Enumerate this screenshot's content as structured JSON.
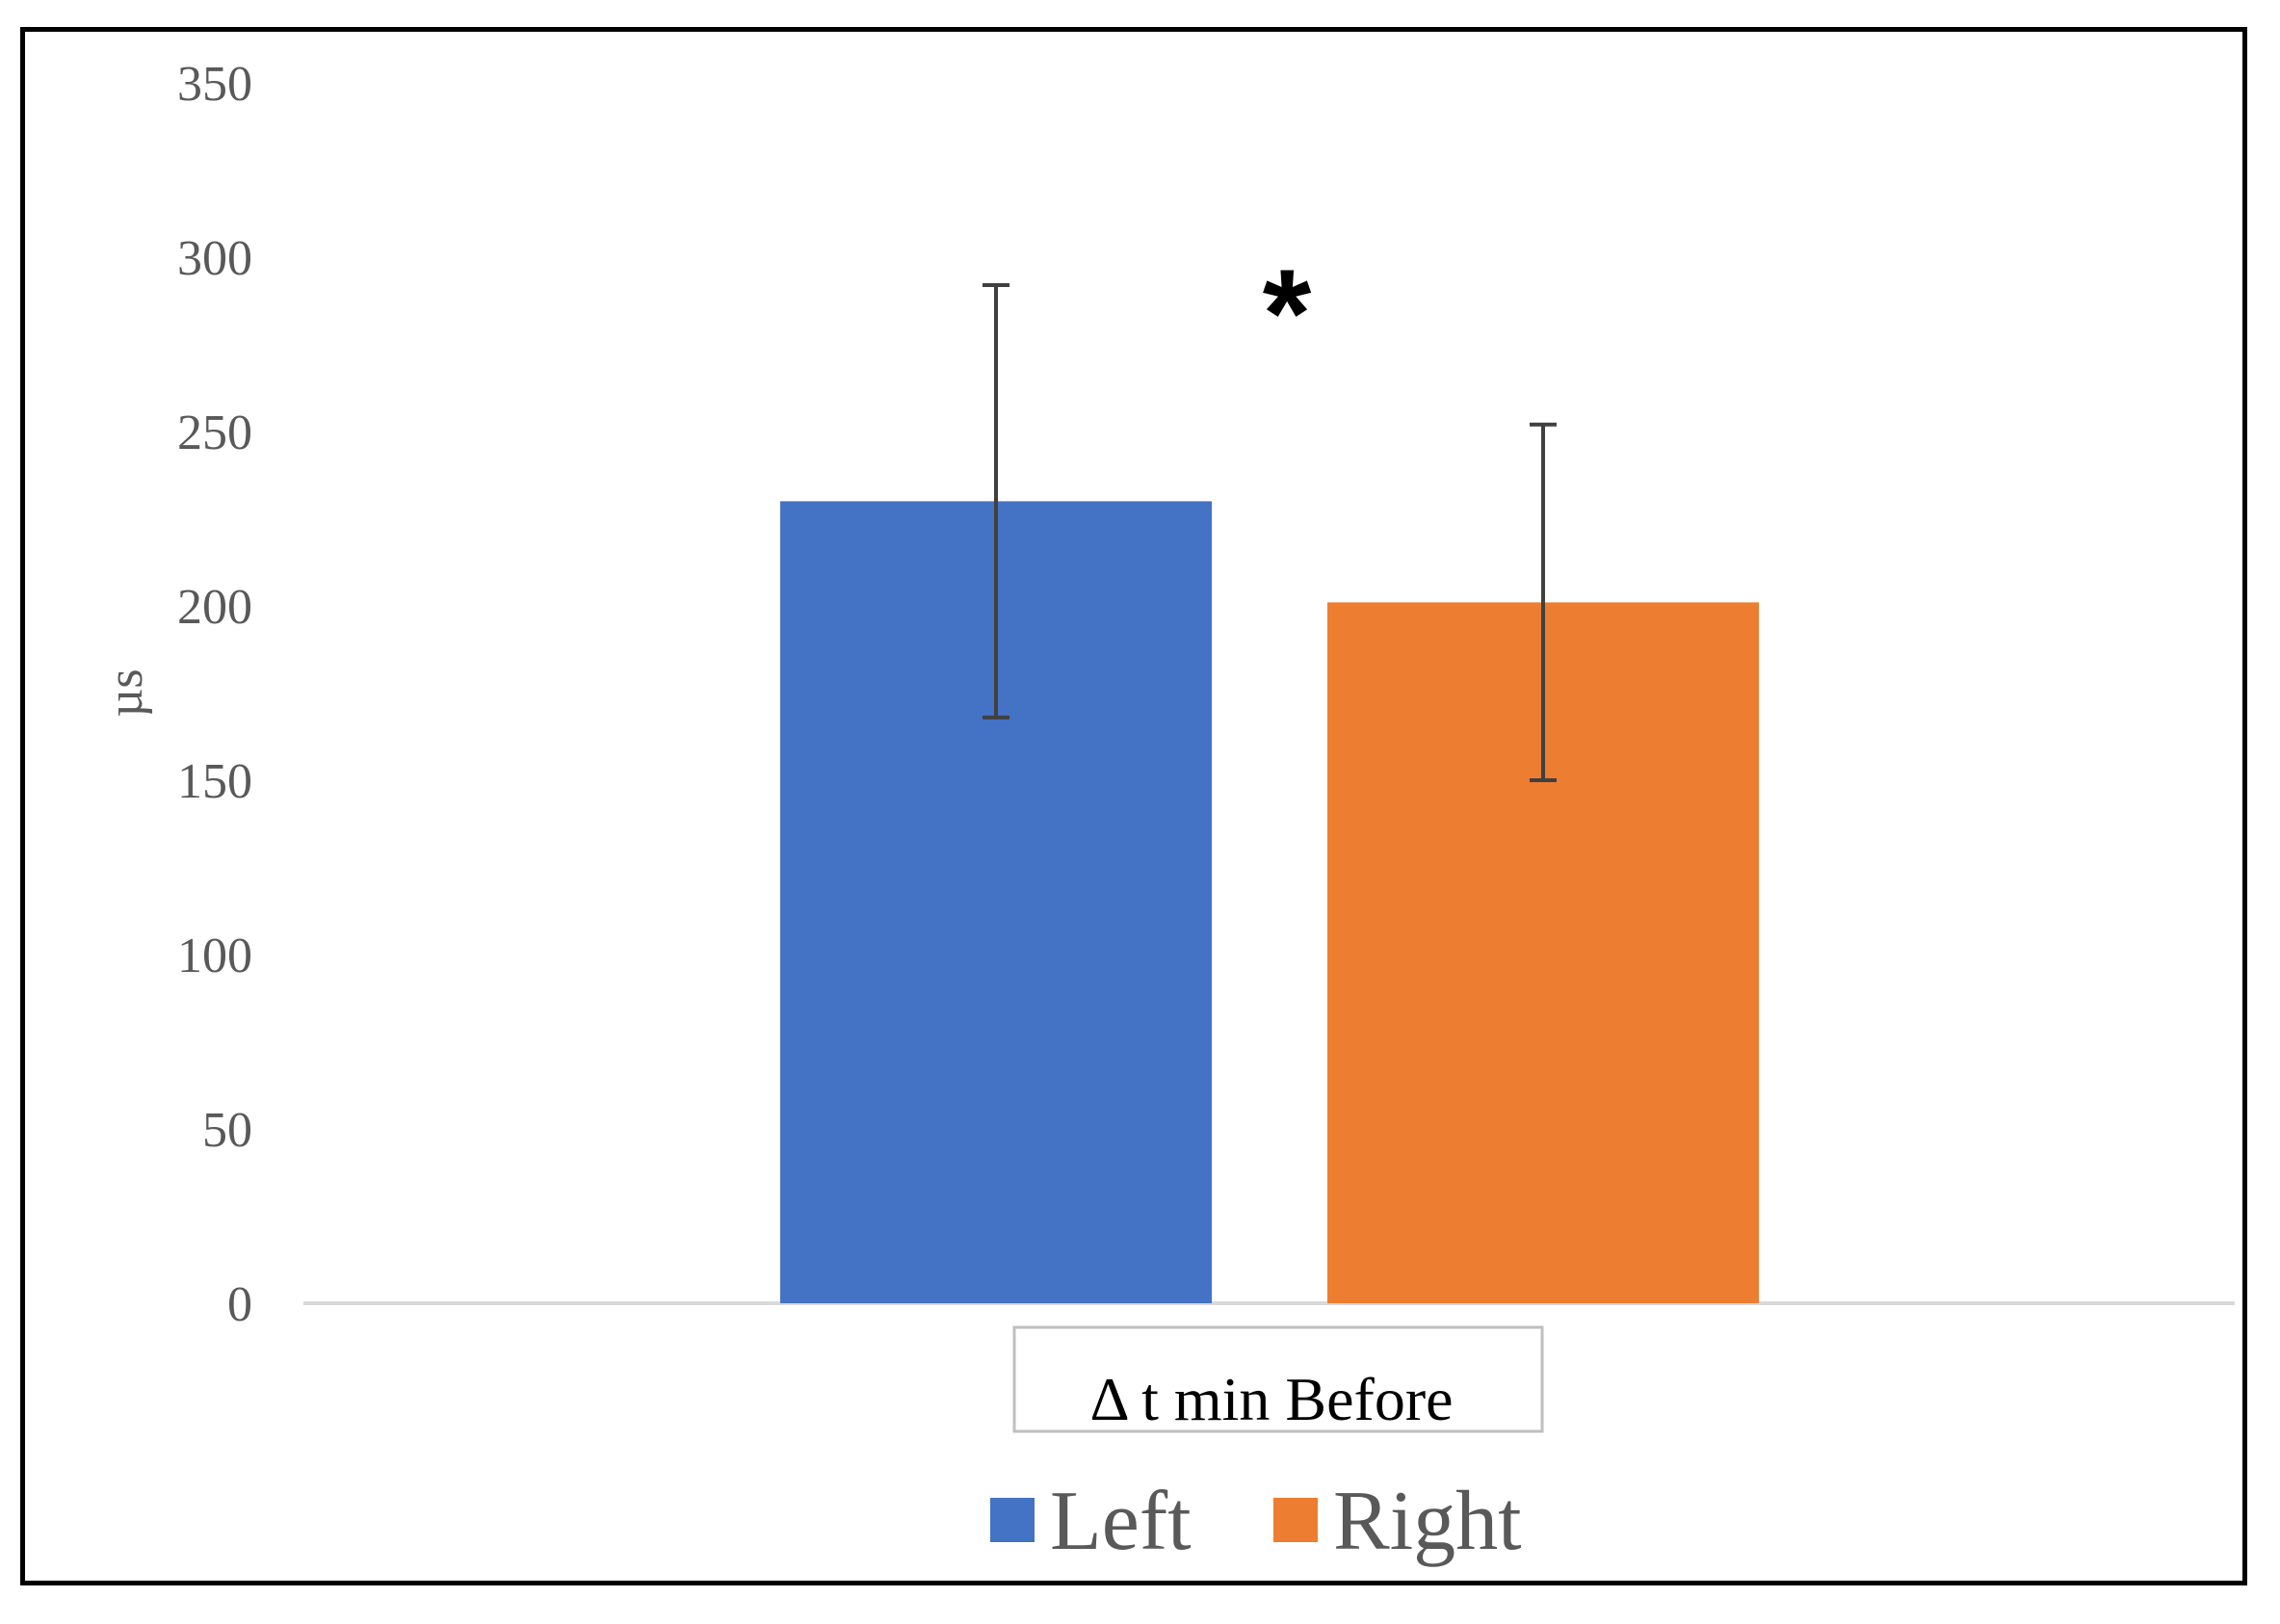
{
  "chart_data": {
    "type": "bar",
    "title": "",
    "xlabel": "",
    "ylabel": "µs",
    "ylim": [
      0,
      350
    ],
    "yticks": [
      0,
      50,
      100,
      150,
      200,
      250,
      300,
      350
    ],
    "grid": false,
    "legend_position": "bottom",
    "categories": [
      "Δ t min Before"
    ],
    "series": [
      {
        "name": "Left",
        "color": "#4472C4",
        "values": [
          230
        ],
        "error": [
          62
        ]
      },
      {
        "name": "Right",
        "color": "#ED7D31",
        "values": [
          201
        ],
        "error": [
          51
        ]
      }
    ],
    "annotations": [
      {
        "text": "*",
        "between_series": [
          "Left",
          "Right"
        ]
      }
    ]
  }
}
